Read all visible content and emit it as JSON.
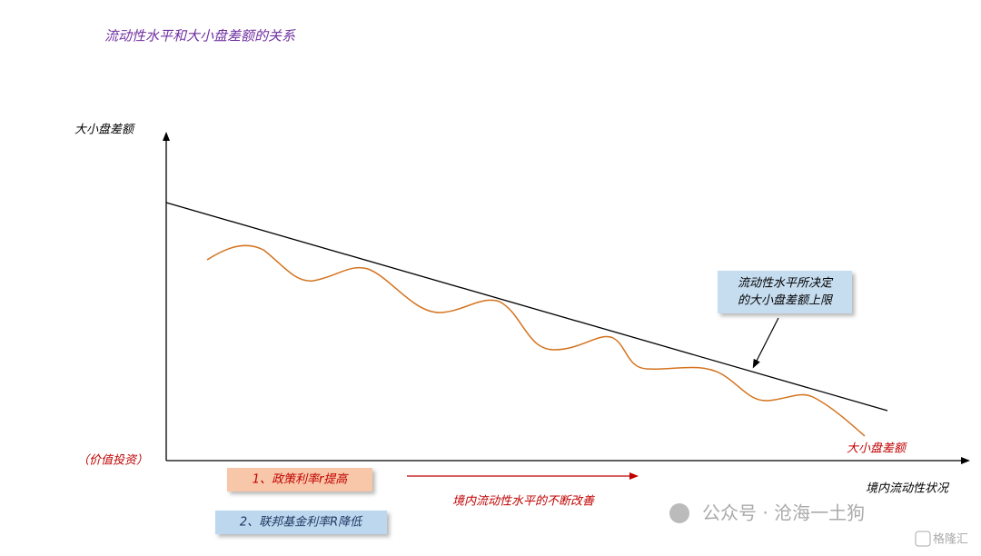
{
  "title": "流动性水平和大小盘差额的关系",
  "y_axis_label": "大小盘差额",
  "y_axis_note": "（价值投资）",
  "x_axis_label": "境内流动性状况",
  "callout": {
    "lines": [
      "流动性水平所决定",
      "的大小盘差额上限"
    ]
  },
  "curve_label": "大小盘差额",
  "arrow_label": "境内流动性水平的不断改善",
  "boxes": [
    "1、政策利率r提高",
    "2、联邦基金利率R降低"
  ],
  "watermark": {
    "text": "公众号 · 沧海一土狗",
    "logo": "格隆汇"
  }
}
